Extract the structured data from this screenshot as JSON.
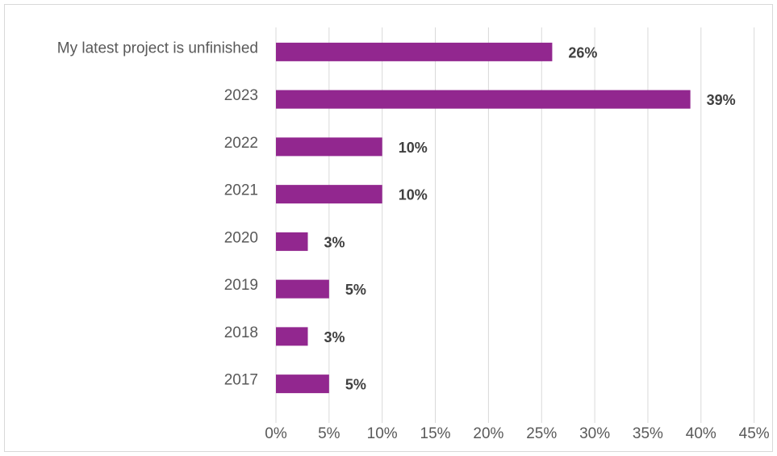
{
  "chart_data": {
    "type": "bar",
    "orientation": "horizontal",
    "categories": [
      "My latest project is unfinished",
      "2023",
      "2022",
      "2021",
      "2020",
      "2019",
      "2018",
      "2017"
    ],
    "values": [
      26,
      39,
      10,
      10,
      3,
      5,
      3,
      5
    ],
    "value_labels": [
      "26%",
      "39%",
      "10%",
      "10%",
      "3%",
      "5%",
      "3%",
      "5%"
    ],
    "xlim": [
      0,
      45
    ],
    "x_ticks": [
      0,
      5,
      10,
      15,
      20,
      25,
      30,
      35,
      40,
      45
    ],
    "x_tick_labels": [
      "0%",
      "5%",
      "10%",
      "15%",
      "20%",
      "25%",
      "30%",
      "35%",
      "40%",
      "45%"
    ],
    "grid": "vertical",
    "legend": "none",
    "colors": {
      "bar": "#92278f",
      "grid": "#d9d9d9",
      "text": "#595959"
    }
  }
}
